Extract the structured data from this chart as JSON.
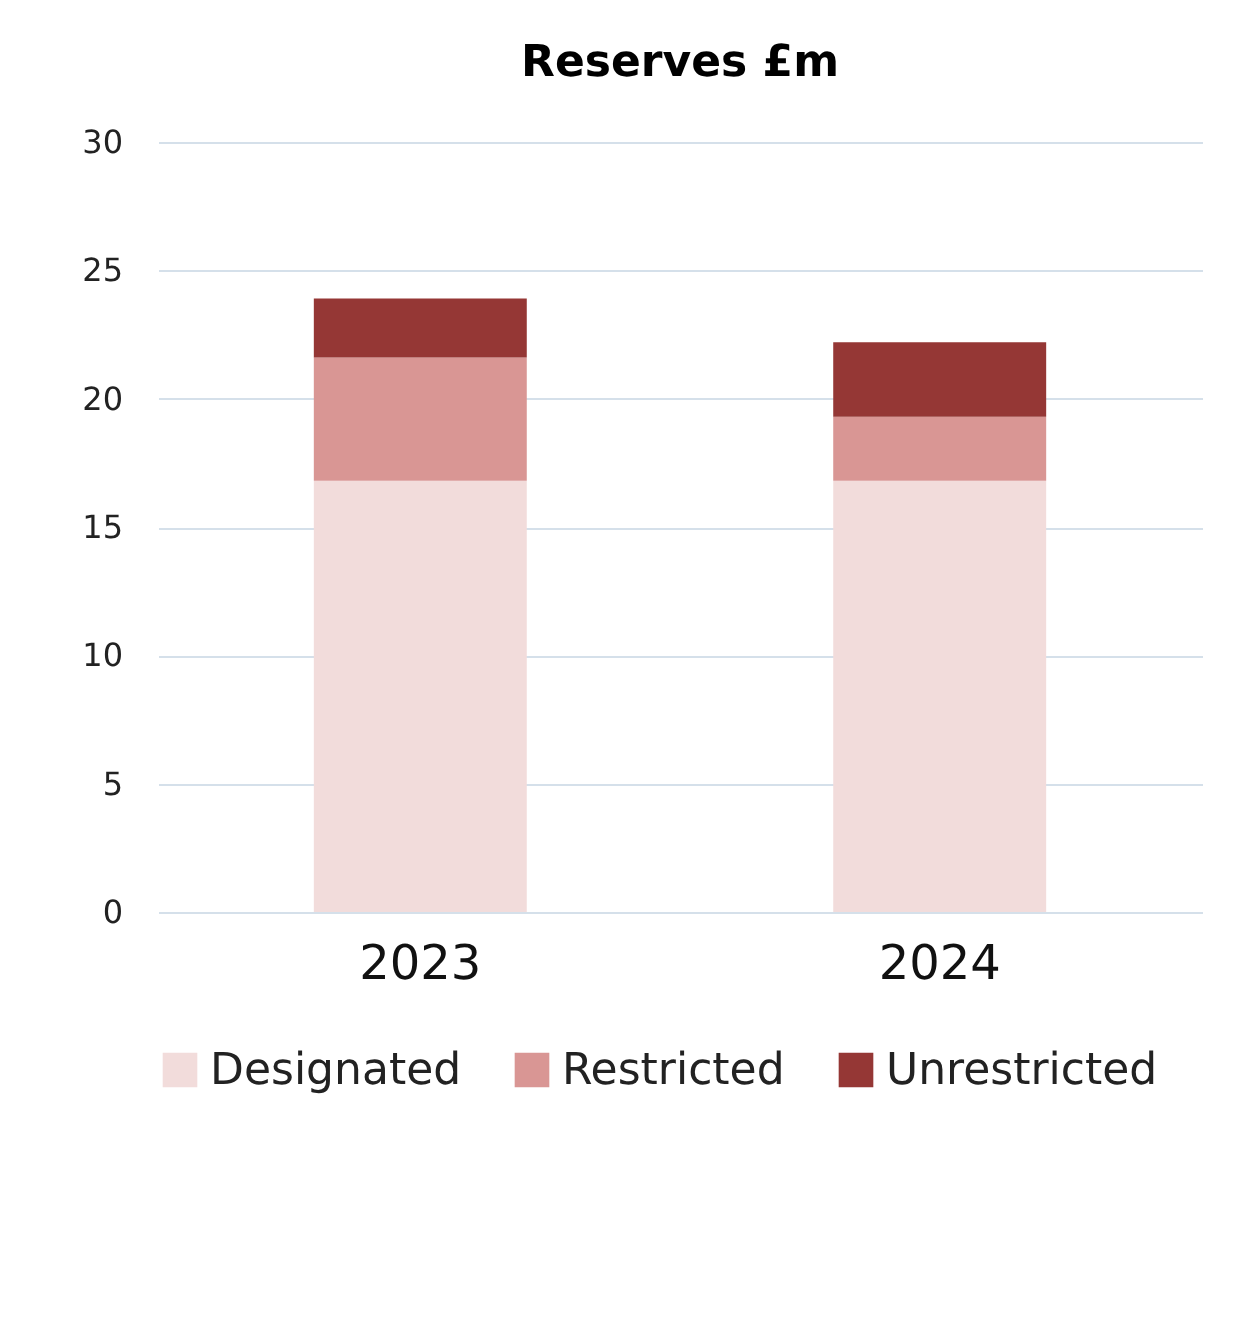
{
  "chart_data": {
    "type": "bar",
    "title": "Reserves £m",
    "stacked": true,
    "categories": [
      "2023",
      "2024"
    ],
    "series": [
      {
        "name": "Designated",
        "color": "#f2dcdb",
        "values": [
          16.8,
          16.8
        ]
      },
      {
        "name": "Restricted",
        "color": "#d99694",
        "values": [
          4.8,
          2.5
        ]
      },
      {
        "name": "Unrestricted",
        "color": "#953735",
        "values": [
          2.3,
          2.9
        ]
      }
    ],
    "ylim": [
      0,
      30
    ],
    "yticks": [
      0,
      5,
      10,
      15,
      20,
      25,
      30
    ],
    "grid": "y",
    "legend": "bottom"
  }
}
